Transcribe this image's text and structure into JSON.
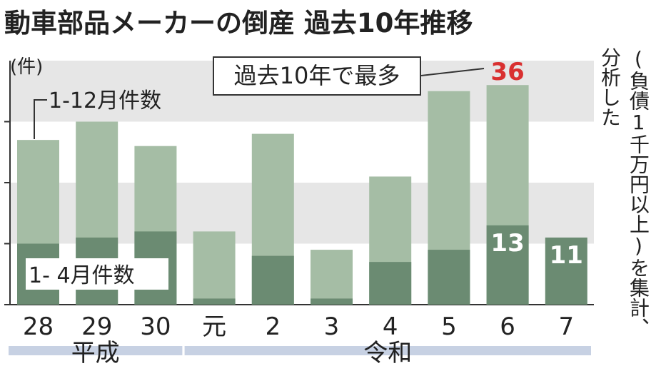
{
  "title": "動車部品メーカーの倒産 過去10年推移",
  "unit_label": "(件)",
  "source_note": {
    "line1": "(負債1千万円以上)を集計、",
    "line2": "分析した"
  },
  "callout": {
    "text": "過去10年で最多",
    "peak_label": "36"
  },
  "colors": {
    "bar_light": "#a5bda5",
    "bar_dark": "#6b8b72",
    "band": "#e6e6e6",
    "era_bar": "#c7d1e3",
    "peak_text": "#d93030",
    "axis": "#333333"
  },
  "chart_data": {
    "type": "bar",
    "title": "動車部品メーカーの倒産 過去10年推移",
    "ylabel": "(件)",
    "xlabel": "",
    "ylim": [
      0,
      40
    ],
    "grid": false,
    "legend_placement": "in-chart labels (top-left)",
    "categories": [
      "28",
      "29",
      "30",
      "元",
      "2",
      "3",
      "4",
      "5",
      "6",
      "7"
    ],
    "eras": [
      {
        "label": "平成",
        "categories": [
          "28",
          "29",
          "30"
        ]
      },
      {
        "label": "令和",
        "categories": [
          "元",
          "2",
          "3",
          "4",
          "5",
          "6",
          "7"
        ]
      }
    ],
    "series": [
      {
        "name": "1-12月件数",
        "values": [
          27,
          30,
          26,
          12,
          28,
          9,
          21,
          35,
          36,
          null
        ]
      },
      {
        "name": "1- 4月件数",
        "values": [
          10,
          11,
          12,
          1,
          8,
          1,
          7,
          9,
          13,
          11
        ]
      }
    ],
    "data_labels": [
      {
        "category": "6",
        "series": "1-12月件数",
        "text": "36"
      },
      {
        "category": "6",
        "series": "1- 4月件数",
        "text": "13"
      },
      {
        "category": "7",
        "series": "1- 4月件数",
        "text": "11"
      }
    ],
    "annotations": [
      "過去10年で最多"
    ]
  }
}
